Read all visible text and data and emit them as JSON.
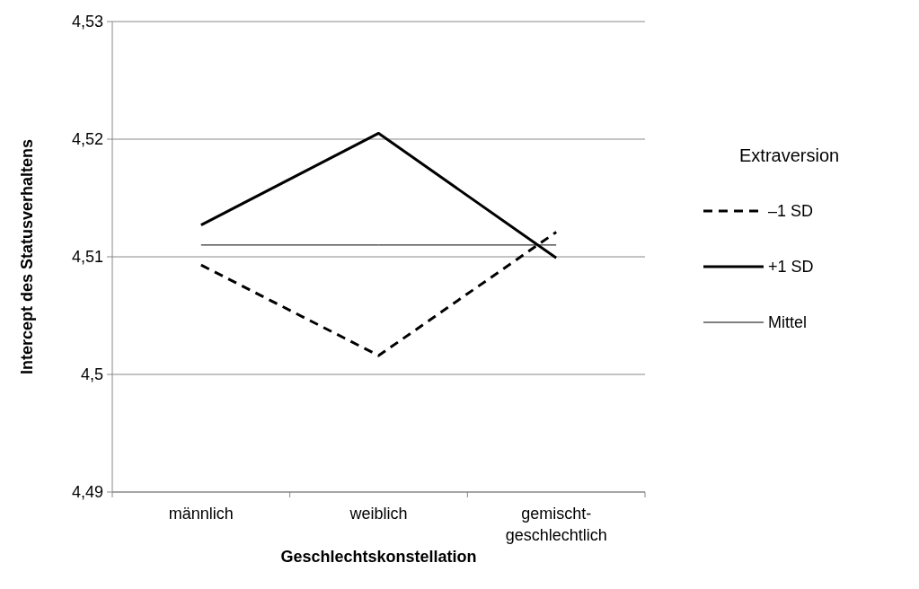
{
  "chart_data": {
    "type": "line",
    "xlabel": "Geschlechtskonstellation",
    "ylabel": "Intercept des Statusverhaltens",
    "legend_title": "Extraversion",
    "legend": "right",
    "grid": "y",
    "marker": "none",
    "categories": [
      "männlich",
      "weiblich",
      "gemischt-geschlechtlich"
    ],
    "ylim": [
      4.49,
      4.53
    ],
    "yticks": [
      {
        "value": 4.49,
        "label": "4,49"
      },
      {
        "value": 4.5,
        "label": "4,5"
      },
      {
        "value": 4.51,
        "label": "4,51"
      },
      {
        "value": 4.52,
        "label": "4,52"
      },
      {
        "value": 4.53,
        "label": "4,53"
      }
    ],
    "series": [
      {
        "name": "–1 SD",
        "color": "#000000",
        "line_style": "dashed",
        "values": [
          4.5093,
          4.5016,
          4.5121
        ]
      },
      {
        "name": "+1 SD",
        "color": "#000000",
        "line_style": "solid",
        "values": [
          4.5127,
          4.5205,
          4.5099
        ]
      },
      {
        "name": "Mittel",
        "color": "#000000",
        "line_style": "solid",
        "values": [
          4.511,
          4.511,
          4.511
        ]
      }
    ]
  }
}
